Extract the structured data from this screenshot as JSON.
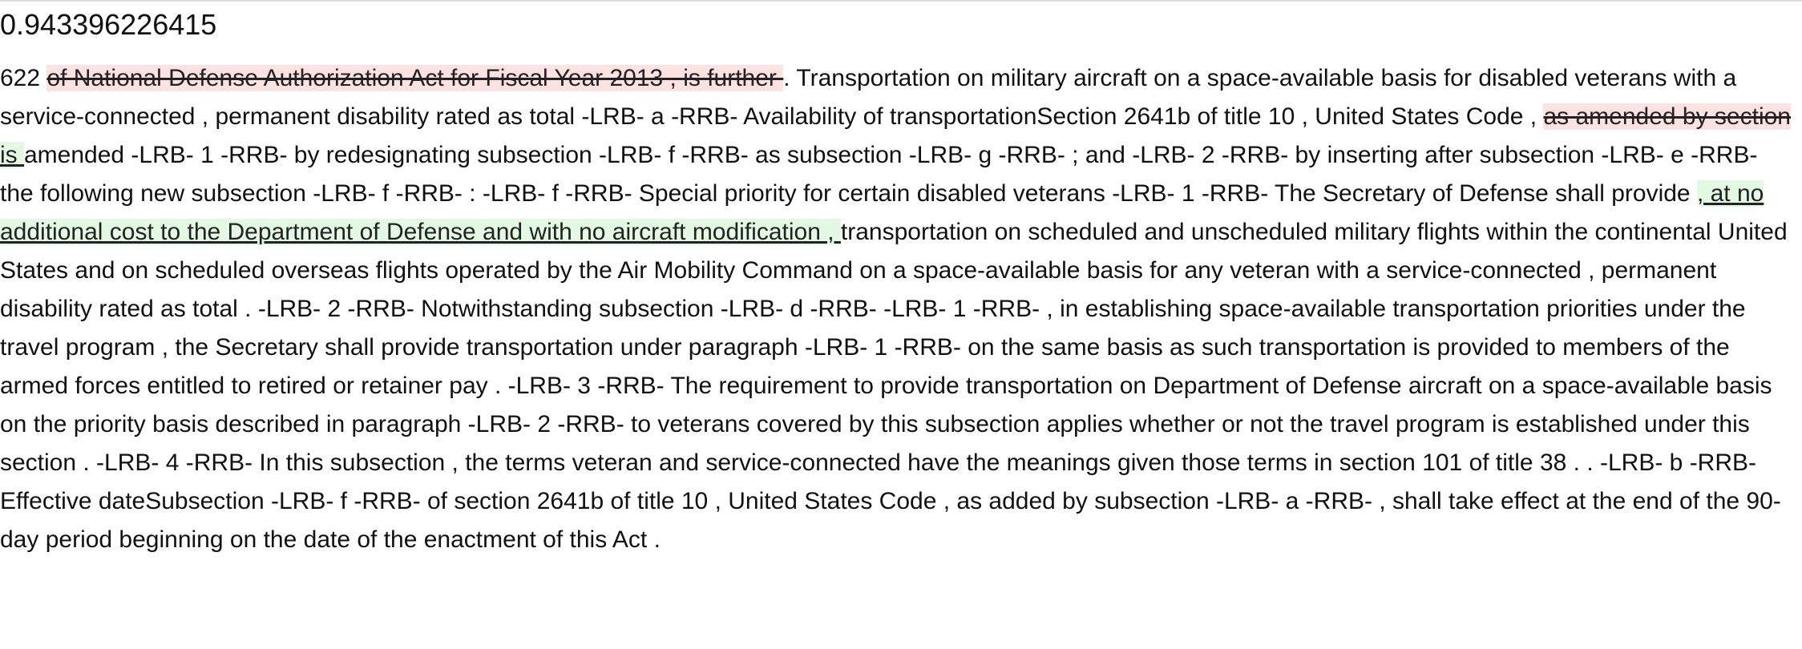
{
  "score": "0.943396226415",
  "segments": [
    {
      "type": "plain",
      "text": "622 "
    },
    {
      "type": "delete",
      "text": "of National Defense Authorization Act for Fiscal Year 2013 , is further "
    },
    {
      "type": "plain",
      "text": ". Transportation on military aircraft on a space-available basis for disabled veterans with a service-connected , permanent disability rated as total -LRB- a -RRB- Availability of transportationSection 2641b of title 10 , United States Code , "
    },
    {
      "type": "delete",
      "text": "as amended by section "
    },
    {
      "type": "insert",
      "text": "is "
    },
    {
      "type": "plain",
      "text": "amended -LRB- 1 -RRB- by redesignating subsection -LRB- f -RRB- as subsection -LRB- g -RRB- ; and -LRB- 2 -RRB- by inserting after subsection -LRB- e -RRB- the following new subsection -LRB- f -RRB- : -LRB- f -RRB- Special priority for certain disabled veterans -LRB- 1 -RRB- The Secretary of Defense shall provide "
    },
    {
      "type": "insert",
      "text": ", at no additional cost to the Department of Defense and with no aircraft modification , "
    },
    {
      "type": "plain",
      "text": "transportation on scheduled and unscheduled military flights within the continental United States and on scheduled overseas flights operated by the Air Mobility Command on a space-available basis for any veteran with a service-connected , permanent disability rated as total . -LRB- 2 -RRB- Notwithstanding subsection -LRB- d -RRB- -LRB- 1 -RRB- , in establishing space-available transportation priorities under the travel program , the Secretary shall provide transportation under paragraph -LRB- 1 -RRB- on the same basis as such transportation is provided to members of the armed forces entitled to retired or retainer pay . -LRB- 3 -RRB- The requirement to provide transportation on Department of Defense aircraft on a space-available basis on the priority basis described in paragraph -LRB- 2 -RRB- to veterans covered by this subsection applies whether or not the travel program is established under this section . -LRB- 4 -RRB- In this subsection , the terms veteran and service-connected have the meanings given those terms in section 101 of title 38 . . -LRB- b -RRB- Effective dateSubsection -LRB- f -RRB- of section 2641b of title 10 , United States Code , as added by subsection -LRB- a -RRB- , shall take effect at the end of the 90-day period beginning on the date of the enactment of this Act ."
    }
  ]
}
